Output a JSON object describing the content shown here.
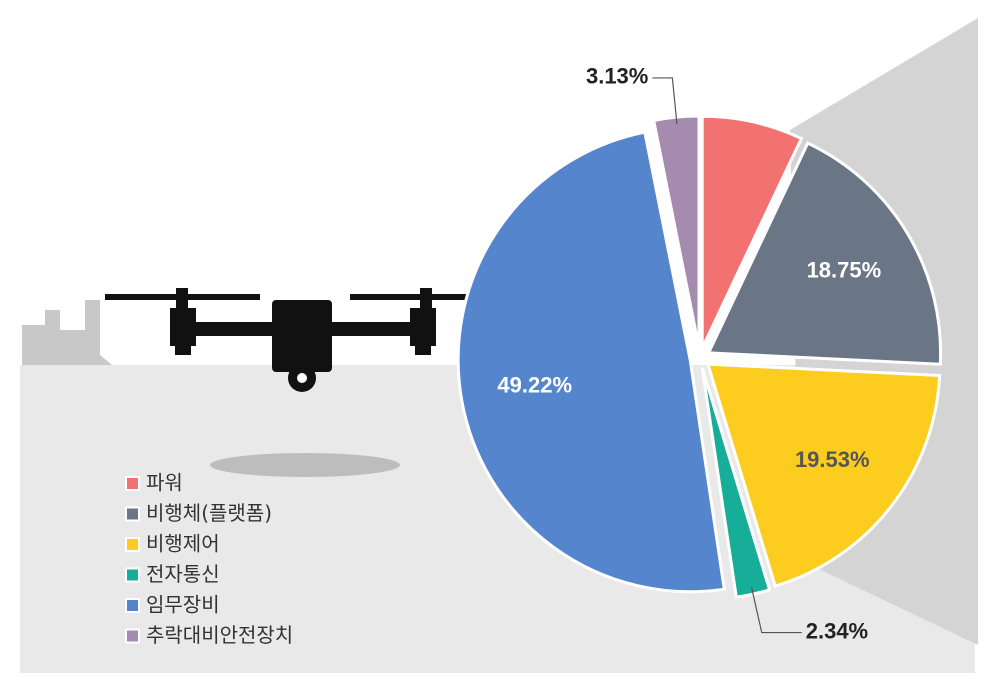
{
  "chart_data": {
    "type": "pie",
    "categories": [
      "파워",
      "비행체(플랫폼)",
      "비행제어",
      "전자통신",
      "임무장비",
      "추락대비안전장치"
    ],
    "values": [
      7.03,
      18.75,
      19.53,
      2.34,
      49.22,
      3.13
    ],
    "value_labels": [
      null,
      "18.75%",
      "19.53%",
      "2.34%",
      "49.22%",
      "3.13%"
    ],
    "colors": [
      "#f27171",
      "#6a7686",
      "#fccd1f",
      "#17ae99",
      "#5586cd",
      "#a68bb1"
    ]
  }
}
